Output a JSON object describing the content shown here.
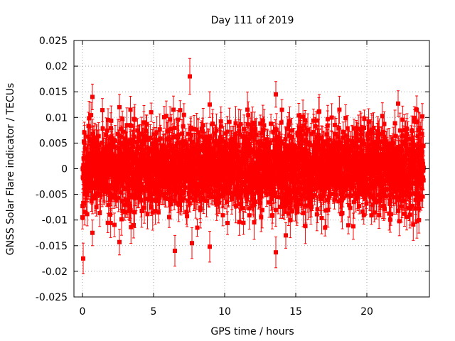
{
  "chart_data": {
    "type": "scatter",
    "title": "Day 111 of 2019",
    "xlabel": "GPS time / hours",
    "ylabel": "GNSS Solar Flare indicator / TECUs",
    "xlim": [
      -0.6,
      24.4
    ],
    "ylim": [
      -0.025,
      0.025
    ],
    "x_ticks": [
      0,
      5,
      10,
      15,
      20
    ],
    "x_tick_labels": [
      "0",
      "5",
      "10",
      "15",
      "20"
    ],
    "y_ticks": [
      0.025,
      0.02,
      0.015,
      0.01,
      0.005,
      0,
      -0.005,
      -0.01,
      -0.015,
      -0.02,
      -0.025
    ],
    "y_tick_labels": [
      "0.025",
      "0.02",
      "0.015",
      "0.01",
      "0.005",
      "0",
      "-0.005",
      "-0.01",
      "-0.015",
      "-0.02",
      "-0.025"
    ],
    "grid": true,
    "series": [
      {
        "name": "GNSS Solar Flare indicator",
        "color": "#ff0000",
        "x_range": [
          0,
          24
        ],
        "sample_interval_hours": 0.0083,
        "typical_spread": 0.004,
        "typical_error": 0.0025,
        "notable_points": [
          {
            "x": 0.05,
            "y": -0.0175,
            "err": 0.003
          },
          {
            "x": 0.7,
            "y": 0.014,
            "err": 0.0025
          },
          {
            "x": 0.7,
            "y": -0.0125,
            "err": 0.0025
          },
          {
            "x": 2.6,
            "y": 0.012,
            "err": 0.0025
          },
          {
            "x": 2.6,
            "y": -0.0143,
            "err": 0.0025
          },
          {
            "x": 3.6,
            "y": -0.011,
            "err": 0.0025
          },
          {
            "x": 6.5,
            "y": -0.016,
            "err": 0.003
          },
          {
            "x": 7.55,
            "y": 0.018,
            "err": 0.0035
          },
          {
            "x": 7.7,
            "y": -0.0145,
            "err": 0.003
          },
          {
            "x": 8.95,
            "y": 0.0125,
            "err": 0.0025
          },
          {
            "x": 8.95,
            "y": -0.0152,
            "err": 0.003
          },
          {
            "x": 13.6,
            "y": 0.0145,
            "err": 0.0025
          },
          {
            "x": 13.6,
            "y": -0.0163,
            "err": 0.003
          },
          {
            "x": 14.3,
            "y": -0.013,
            "err": 0.0025
          },
          {
            "x": 22.2,
            "y": 0.0127,
            "err": 0.0025
          },
          {
            "x": 23.9,
            "y": 0.0102,
            "err": 0.0025
          }
        ]
      }
    ]
  }
}
